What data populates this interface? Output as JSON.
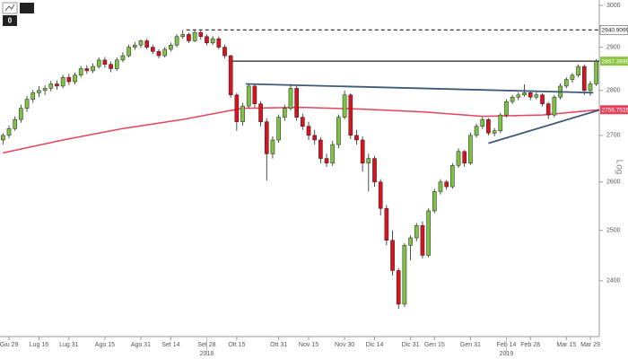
{
  "toolbar": {
    "label": "0"
  },
  "chart_data": {
    "type": "candlestick",
    "scale": "log",
    "xlim": [
      -0.5,
      99.5
    ],
    "xticks": [
      {
        "value": 1,
        "label": "Giu 29"
      },
      {
        "value": 6,
        "label": "Lug 16"
      },
      {
        "value": 11,
        "label": "Lug 31"
      },
      {
        "value": 17,
        "label": "Ago 15"
      },
      {
        "value": 23,
        "label": "Ago 31"
      },
      {
        "value": 28,
        "label": "Set 14"
      },
      {
        "value": 34,
        "label": "Set 28"
      },
      {
        "value": 39,
        "label": "Ott 15"
      },
      {
        "value": 46,
        "label": "Ott 31"
      },
      {
        "value": 51,
        "label": "Nov 15"
      },
      {
        "value": 57,
        "label": "Nov 30"
      },
      {
        "value": 62,
        "label": "Dic 14"
      },
      {
        "value": 68,
        "label": "Dic 31"
      },
      {
        "value": 72,
        "label": "Gen 15"
      },
      {
        "value": 78,
        "label": "Gen 31"
      },
      {
        "value": 84,
        "label": "Feb 14"
      },
      {
        "value": 88,
        "label": "Feb 28"
      },
      {
        "value": 94,
        "label": "Mar 15"
      },
      {
        "value": 98,
        "label": "Mar 29"
      }
    ],
    "years": [
      {
        "value": 34,
        "label": "2018"
      },
      {
        "value": 84,
        "label": "2019"
      }
    ],
    "ylim": [
      2294,
      3013
    ],
    "yticks": [
      2400,
      2500,
      2600,
      2700,
      2800,
      2900,
      3000
    ],
    "axis_label": "Log",
    "up_color": "#7dc242",
    "down_color": "#d7141e",
    "candles": [
      [
        2690,
        2705,
        2680,
        2700
      ],
      [
        2700,
        2722,
        2694,
        2715
      ],
      [
        2715,
        2742,
        2710,
        2735
      ],
      [
        2735,
        2768,
        2728,
        2760
      ],
      [
        2760,
        2788,
        2752,
        2780
      ],
      [
        2780,
        2801,
        2772,
        2795
      ],
      [
        2795,
        2810,
        2785,
        2800
      ],
      [
        2800,
        2812,
        2790,
        2805
      ],
      [
        2805,
        2822,
        2798,
        2815
      ],
      [
        2815,
        2823,
        2802,
        2810
      ],
      [
        2810,
        2836,
        2805,
        2830
      ],
      [
        2830,
        2838,
        2812,
        2820
      ],
      [
        2820,
        2841,
        2814,
        2835
      ],
      [
        2835,
        2856,
        2830,
        2850
      ],
      [
        2850,
        2858,
        2838,
        2845
      ],
      [
        2845,
        2862,
        2840,
        2855
      ],
      [
        2855,
        2876,
        2850,
        2870
      ],
      [
        2870,
        2877,
        2852,
        2860
      ],
      [
        2860,
        2866,
        2842,
        2850
      ],
      [
        2850,
        2876,
        2845,
        2870
      ],
      [
        2870,
        2888,
        2865,
        2880
      ],
      [
        2880,
        2906,
        2876,
        2900
      ],
      [
        2900,
        2912,
        2894,
        2905
      ],
      [
        2905,
        2918,
        2898,
        2915
      ],
      [
        2915,
        2920,
        2895,
        2900
      ],
      [
        2900,
        2906,
        2884,
        2890
      ],
      [
        2890,
        2895,
        2874,
        2880
      ],
      [
        2880,
        2900,
        2876,
        2895
      ],
      [
        2895,
        2911,
        2890,
        2905
      ],
      [
        2905,
        2931,
        2900,
        2925
      ],
      [
        2925,
        2941,
        2920,
        2930
      ],
      [
        2930,
        2934,
        2910,
        2915
      ],
      [
        2915,
        2940,
        2912,
        2935
      ],
      [
        2935,
        2939,
        2918,
        2925
      ],
      [
        2925,
        2930,
        2904,
        2910
      ],
      [
        2910,
        2926,
        2905,
        2920
      ],
      [
        2920,
        2925,
        2895,
        2900
      ],
      [
        2900,
        2906,
        2874,
        2880
      ],
      [
        2880,
        2882,
        2784,
        2790
      ],
      [
        2790,
        2795,
        2710,
        2730
      ],
      [
        2730,
        2772,
        2722,
        2765
      ],
      [
        2765,
        2816,
        2760,
        2810
      ],
      [
        2810,
        2815,
        2762,
        2770
      ],
      [
        2770,
        2776,
        2720,
        2730
      ],
      [
        2730,
        2738,
        2603,
        2660
      ],
      [
        2660,
        2698,
        2650,
        2690
      ],
      [
        2690,
        2746,
        2684,
        2740
      ],
      [
        2740,
        2768,
        2732,
        2760
      ],
      [
        2760,
        2815,
        2755,
        2805
      ],
      [
        2805,
        2810,
        2732,
        2740
      ],
      [
        2740,
        2748,
        2712,
        2720
      ],
      [
        2720,
        2730,
        2690,
        2700
      ],
      [
        2700,
        2712,
        2680,
        2690
      ],
      [
        2690,
        2696,
        2640,
        2650
      ],
      [
        2650,
        2660,
        2632,
        2640
      ],
      [
        2640,
        2688,
        2634,
        2680
      ],
      [
        2680,
        2746,
        2672,
        2740
      ],
      [
        2740,
        2800,
        2735,
        2790
      ],
      [
        2790,
        2794,
        2692,
        2700
      ],
      [
        2700,
        2712,
        2680,
        2690
      ],
      [
        2690,
        2698,
        2622,
        2640
      ],
      [
        2640,
        2660,
        2580,
        2650
      ],
      [
        2650,
        2656,
        2590,
        2600
      ],
      [
        2600,
        2606,
        2530,
        2545
      ],
      [
        2545,
        2552,
        2470,
        2480
      ],
      [
        2480,
        2500,
        2410,
        2420
      ],
      [
        2420,
        2425,
        2346,
        2355
      ],
      [
        2355,
        2474,
        2350,
        2470
      ],
      [
        2470,
        2490,
        2440,
        2485
      ],
      [
        2485,
        2515,
        2478,
        2510
      ],
      [
        2510,
        2518,
        2444,
        2450
      ],
      [
        2450,
        2545,
        2446,
        2540
      ],
      [
        2540,
        2586,
        2535,
        2580
      ],
      [
        2580,
        2606,
        2574,
        2600
      ],
      [
        2600,
        2604,
        2584,
        2590
      ],
      [
        2590,
        2640,
        2586,
        2635
      ],
      [
        2635,
        2672,
        2630,
        2665
      ],
      [
        2665,
        2668,
        2632,
        2640
      ],
      [
        2640,
        2706,
        2636,
        2700
      ],
      [
        2700,
        2726,
        2695,
        2720
      ],
      [
        2720,
        2740,
        2714,
        2735
      ],
      [
        2735,
        2738,
        2700,
        2705
      ],
      [
        2705,
        2716,
        2698,
        2710
      ],
      [
        2710,
        2750,
        2705,
        2745
      ],
      [
        2745,
        2780,
        2740,
        2775
      ],
      [
        2775,
        2790,
        2770,
        2785
      ],
      [
        2785,
        2796,
        2778,
        2790
      ],
      [
        2790,
        2814,
        2786,
        2795
      ],
      [
        2795,
        2800,
        2778,
        2785
      ],
      [
        2785,
        2796,
        2780,
        2790
      ],
      [
        2790,
        2794,
        2764,
        2770
      ],
      [
        2770,
        2774,
        2736,
        2745
      ],
      [
        2745,
        2790,
        2740,
        2785
      ],
      [
        2785,
        2816,
        2780,
        2810
      ],
      [
        2810,
        2830,
        2805,
        2825
      ],
      [
        2825,
        2840,
        2818,
        2835
      ],
      [
        2835,
        2860,
        2830,
        2855
      ],
      [
        2855,
        2860,
        2790,
        2800
      ],
      [
        2800,
        2822,
        2788,
        2815
      ],
      [
        2815,
        2872,
        2810,
        2867
      ]
    ],
    "ma": {
      "color": "#e8415b",
      "x": [
        0,
        10,
        20,
        30,
        40,
        50,
        60,
        70,
        80,
        90,
        99.5
      ],
      "values": [
        2662,
        2690,
        2715,
        2735,
        2760,
        2762,
        2758,
        2752,
        2742,
        2745,
        2756.7526
      ]
    },
    "trendlines": [
      {
        "color": "#3d5a7a",
        "x": [
          40.5,
          98.5
        ],
        "values": [
          2815,
          2795
        ]
      },
      {
        "color": "#3d5a7a",
        "x": [
          81,
          99.5
        ],
        "values": [
          2683,
          2756
        ]
      }
    ],
    "levels": [
      {
        "value": 2940.9099,
        "start": 30.6,
        "style": "dashed",
        "color": "#222222",
        "tag_color": "#ffffff"
      },
      {
        "value": 2867.3899,
        "start": 37.6,
        "style": "solid",
        "color": "#222222",
        "tag_color": "#8cc63f"
      },
      {
        "value": 2756.7526,
        "start": 99.5,
        "style": "none",
        "color": "#e8415b",
        "tag_color": "#e8415b"
      }
    ]
  }
}
